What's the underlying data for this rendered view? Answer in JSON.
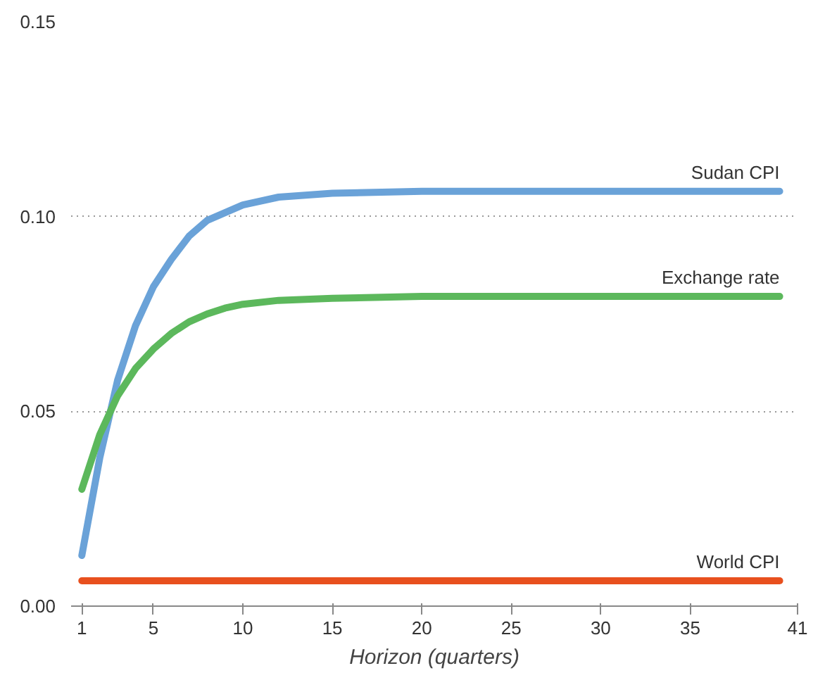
{
  "chart_data": {
    "type": "line",
    "xlabel": "Horizon (quarters)",
    "x": [
      1,
      2,
      3,
      4,
      5,
      6,
      7,
      8,
      9,
      10,
      12,
      15,
      20,
      25,
      30,
      35,
      40
    ],
    "series": [
      {
        "name": "Sudan CPI",
        "color": "#6aa2d8",
        "values": [
          0.013,
          0.038,
          0.058,
          0.072,
          0.082,
          0.089,
          0.095,
          0.099,
          0.101,
          0.103,
          0.105,
          0.106,
          0.1065,
          0.1065,
          0.1065,
          0.1065,
          0.1065
        ]
      },
      {
        "name": "Exchange rate",
        "color": "#5cb85c",
        "values": [
          0.03,
          0.044,
          0.054,
          0.061,
          0.066,
          0.07,
          0.073,
          0.075,
          0.0765,
          0.0775,
          0.0785,
          0.079,
          0.0795,
          0.0795,
          0.0795,
          0.0795,
          0.0795
        ]
      },
      {
        "name": "World CPI",
        "color": "#e8501e",
        "values": [
          0.0065,
          0.0065,
          0.0065,
          0.0065,
          0.0065,
          0.0065,
          0.0065,
          0.0065,
          0.0065,
          0.0065,
          0.0065,
          0.0065,
          0.0065,
          0.0065,
          0.0065,
          0.0065,
          0.0065
        ]
      }
    ],
    "xlim": [
      0.4,
      41
    ],
    "xticks": [
      1,
      5,
      10,
      15,
      20,
      25,
      30,
      35,
      41
    ],
    "ylim": [
      0,
      0.15
    ],
    "yticks": [
      {
        "value": 0,
        "label": "0.00"
      },
      {
        "value": 0.05,
        "label": "0.05"
      },
      {
        "value": 0.1,
        "label": "0.10"
      },
      {
        "value": 0.15,
        "label": "0.15"
      }
    ],
    "grid": "y",
    "legend": false,
    "line_style": "solid",
    "marker": "none"
  }
}
